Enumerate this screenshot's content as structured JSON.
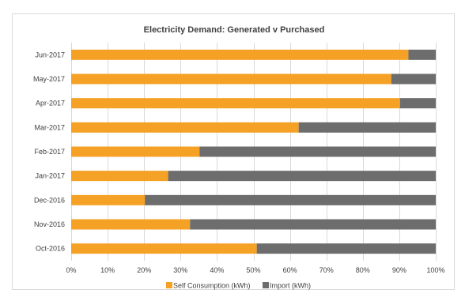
{
  "chart_data": {
    "type": "bar",
    "orientation": "horizontal",
    "stacked": "percent",
    "title": "Electricity Demand: Generated v Purchased",
    "categories": [
      "Jun-2017",
      "May-2017",
      "Apr-2017",
      "Mar-2017",
      "Feb-2017",
      "Jan-2017",
      "Dec-2016",
      "Nov-2016",
      "Oct-2016"
    ],
    "series": [
      {
        "name": "Self Consumption (kWh)",
        "color": "#f5a126",
        "values": [
          92.5,
          87.8,
          90.2,
          62.4,
          35.2,
          26.6,
          20.2,
          32.6,
          50.9
        ]
      },
      {
        "name": "Import (kWh)",
        "color": "#6d6d6d",
        "values": [
          7.5,
          12.2,
          9.8,
          37.6,
          64.8,
          73.4,
          79.8,
          67.4,
          49.1
        ]
      }
    ],
    "x_ticks": [
      "0%",
      "10%",
      "20%",
      "30%",
      "40%",
      "50%",
      "60%",
      "70%",
      "80%",
      "90%",
      "100%"
    ],
    "xlim": [
      0,
      100
    ],
    "grid": "vertical",
    "legend_position": "bottom"
  }
}
